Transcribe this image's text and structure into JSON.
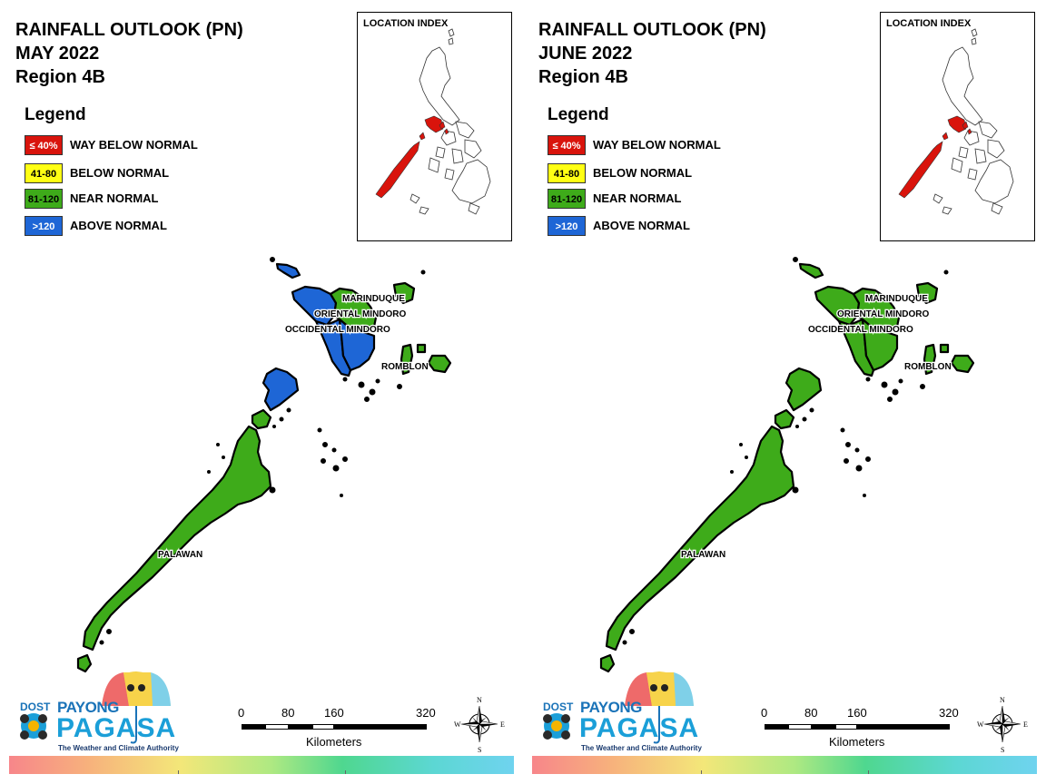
{
  "panels": [
    {
      "id": "may",
      "title_lines": [
        "RAINFALL OUTLOOK (PN)",
        "MAY 2022",
        "Region 4B"
      ],
      "map_colors": {
        "occ_mindoro_north": "#1e66d6",
        "occ_mindoro_south": "#1e66d6",
        "or_mindoro_north": "#3eab1a",
        "or_mindoro_south": "#1e66d6",
        "calamian": "#1e66d6",
        "lubang": "#1e66d6",
        "palawan": "#3eab1a",
        "marinduque": "#3eab1a",
        "romblon": "#3eab1a"
      }
    },
    {
      "id": "june",
      "title_lines": [
        "RAINFALL OUTLOOK (PN)",
        "JUNE 2022",
        "Region 4B"
      ],
      "map_colors": {
        "occ_mindoro_north": "#3eab1a",
        "occ_mindoro_south": "#3eab1a",
        "or_mindoro_north": "#3eab1a",
        "or_mindoro_south": "#3eab1a",
        "calamian": "#3eab1a",
        "lubang": "#3eab1a",
        "palawan": "#3eab1a",
        "marinduque": "#3eab1a",
        "romblon": "#3eab1a"
      }
    }
  ],
  "legend": {
    "heading": "Legend",
    "items": [
      {
        "swatch_text": "≤ 40%",
        "label": "WAY BELOW NORMAL",
        "color": "#d9140c",
        "text_color": "#ffffff"
      },
      {
        "swatch_text": "41-80",
        "label": "BELOW NORMAL",
        "color": "#ffff14",
        "text_color": "#000000"
      },
      {
        "swatch_text": "81-120",
        "label": "NEAR NORMAL",
        "color": "#3eab1a",
        "text_color": "#000000"
      },
      {
        "swatch_text": ">120",
        "label": "ABOVE NORMAL",
        "color": "#1e66d6",
        "text_color": "#ffffff"
      }
    ]
  },
  "inset": {
    "title": "LOCATION INDEX",
    "highlight_color": "#d9140c"
  },
  "map_labels": {
    "marinduque": "MARINDUQUE",
    "oriental_mindoro": "ORIENTAL MINDORO",
    "occidental_mindoro": "OCCIDENTAL MINDORO",
    "romblon": "ROMBLON",
    "palawan": "PALAWAN"
  },
  "logo": {
    "dost": "DOST",
    "payong": "PAYONG",
    "pagasa": "PAGASA",
    "tagline": "The Weather and Climate Authority"
  },
  "scale": {
    "ticks": [
      "0",
      "80",
      "160",
      "320"
    ],
    "unit": "Kilometers"
  },
  "compass": {
    "n": "N",
    "s": "S",
    "e": "E",
    "w": "W"
  }
}
